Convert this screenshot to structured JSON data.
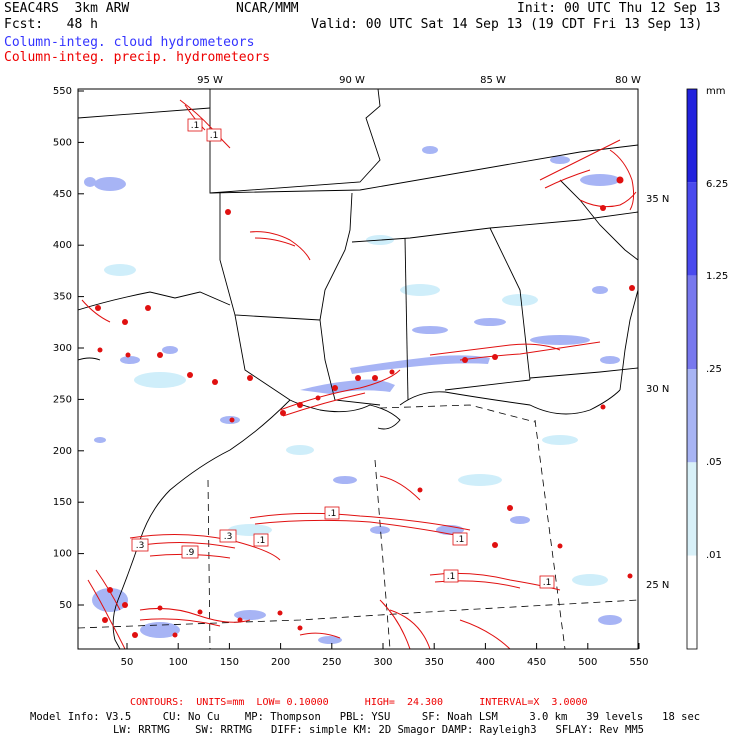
{
  "header": {
    "model": "SEAC4RS  3km ARW",
    "org": "NCAR/MMM",
    "init": "Init: 00 UTC Thu 12 Sep 13",
    "fcst": "Fcst:   48 h",
    "valid": "Valid: 00 UTC Sat 14 Sep 13 (19 CDT Fri 13 Sep 13)",
    "field1": "Column-integ. cloud hydrometeors",
    "field2": "Column-integ. precip. hydrometeors"
  },
  "map": {
    "top_ticks": [
      "95 W",
      "90 W",
      "85 W",
      "80 W"
    ],
    "right_ticks": [
      "35 N",
      "30 N",
      "25 N"
    ],
    "y_ticks": [
      "550",
      "500",
      "450",
      "400",
      "350",
      "300",
      "250",
      "200",
      "150",
      "100",
      "50"
    ],
    "x_ticks": [
      "50",
      "100",
      "150",
      "200",
      "250",
      "300",
      "350",
      "400",
      "450",
      "500",
      "550"
    ],
    "contour_labels": [
      ".1",
      ".1",
      ".3",
      ".9",
      ".3",
      ".1",
      ".1",
      ".1",
      ".1",
      ".1"
    ]
  },
  "colorbar": {
    "unit": "mm",
    "labels": [
      "6.25",
      "1.25",
      ".25",
      ".05",
      ".01"
    ],
    "colors": [
      "#2222dd",
      "#4a4aee",
      "#7878ee",
      "#a8b4f4",
      "#d8f0f8",
      "#ffffff"
    ]
  },
  "footer": {
    "contours": "CONTOURS:  UNITS=mm  LOW= 0.10000      HIGH=  24.300      INTERVAL=X  3.0000",
    "info1": "Model Info: V3.5     CU: No Cu    MP: Thompson   PBL: YSU     SF: Noah LSM     3.0 km   39 levels   18 sec",
    "info2": "LW: RRTMG    SW: RRTMG   DIFF: simple KM: 2D Smagor DAMP: Rayleigh3   SFLAY: Rev MM5"
  },
  "colors": {
    "cloud": "#7788ee",
    "precip": "#ee0000",
    "frame": "#000000"
  }
}
